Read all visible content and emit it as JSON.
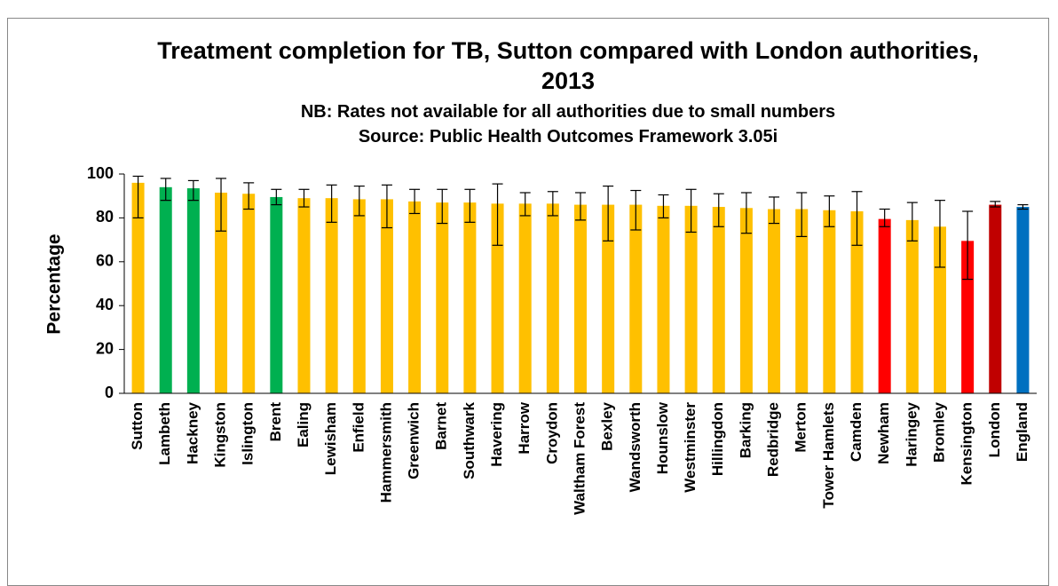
{
  "chart_data": {
    "type": "bar",
    "title": "Treatment completion for TB, Sutton compared with London authorities, 2013",
    "subtitle": "NB: Rates not available for all authorities due to small numbers",
    "source": "Source: Public Health Outcomes Framework 3.05i",
    "y_label": "Percentage",
    "categories": [
      "Sutton",
      "Lambeth",
      "Hackney",
      "Kingston",
      "Islington",
      "Brent",
      "Ealing",
      "Lewisham",
      "Enfield",
      "Hammersmith",
      "Greenwich",
      "Barnet",
      "Southwark",
      "Havering",
      "Harrow",
      "Croydon",
      "Waltham Forest",
      "Bexley",
      "Wandsworth",
      "Hounslow",
      "Westminster",
      "Hillingdon",
      "Barking",
      "Redbridge",
      "Merton",
      "Tower Hamlets",
      "Camden",
      "Newham",
      "Haringey",
      "Bromley",
      "Kensington",
      "London",
      "England"
    ],
    "values": [
      96,
      94,
      93.5,
      91.5,
      91,
      89.5,
      89,
      89,
      88.5,
      88.5,
      87.5,
      87,
      87,
      86.5,
      86.5,
      86.5,
      86,
      86,
      86,
      85.5,
      85.5,
      85,
      84.5,
      84,
      84,
      83.5,
      83,
      79.5,
      79,
      76,
      69.5,
      86,
      85
    ],
    "ci_lower": [
      80,
      88,
      88,
      74,
      84,
      86,
      85,
      78,
      81,
      75.5,
      82,
      77.5,
      78,
      67.5,
      81,
      81,
      79,
      69.5,
      74.5,
      80,
      73.5,
      76,
      73,
      77.5,
      71.5,
      76,
      67.5,
      76,
      69.5,
      57.5,
      52,
      85,
      84
    ],
    "ci_upper": [
      99,
      98,
      97,
      98,
      96,
      93,
      93,
      95,
      94.5,
      95,
      93,
      93,
      93,
      95.5,
      91.5,
      92,
      91.5,
      94.5,
      92.5,
      90.5,
      93,
      91,
      91.5,
      89.5,
      91.5,
      90,
      92,
      84,
      87,
      88,
      83,
      87.5,
      86
    ],
    "colors": [
      "#FFC000",
      "#00B050",
      "#00B050",
      "#FFC000",
      "#FFC000",
      "#00B050",
      "#FFC000",
      "#FFC000",
      "#FFC000",
      "#FFC000",
      "#FFC000",
      "#FFC000",
      "#FFC000",
      "#FFC000",
      "#FFC000",
      "#FFC000",
      "#FFC000",
      "#FFC000",
      "#FFC000",
      "#FFC000",
      "#FFC000",
      "#FFC000",
      "#FFC000",
      "#FFC000",
      "#FFC000",
      "#FFC000",
      "#FFC000",
      "#FF0000",
      "#FFC000",
      "#FFC000",
      "#FF0000",
      "#C00000",
      "#0070C0"
    ],
    "ylim": [
      0,
      100
    ],
    "yticks": [
      0,
      20,
      40,
      60,
      80,
      100
    ],
    "grid": false
  }
}
